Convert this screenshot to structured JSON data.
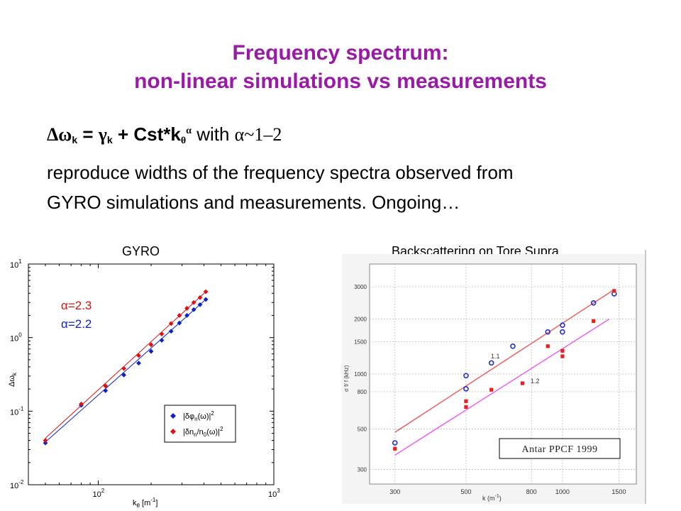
{
  "title": {
    "line1": "Frequency spectrum:",
    "line2": "non-linear simulations vs measurements"
  },
  "formula": {
    "lhs": "Δω",
    "lhs_sub": "k",
    "eq": " = ",
    "gamma": "γ",
    "gamma_sub": "k",
    "plus": " + Cst*k",
    "k_sub": "θ",
    "k_sup": "α",
    "with": " with ",
    "range": "α~1–2"
  },
  "body": {
    "line1": "reproduce widths of the frequency spectra observed from",
    "line2": "GYRO simulations and measurements. Ongoing…"
  },
  "colors": {
    "title": "#9a1aa8",
    "red": "#e01010",
    "blue": "#1020c8",
    "bs_blue": "#2030d0",
    "bs_red": "#e82020",
    "bs_red_line": "#f06060",
    "bs_magenta_line": "#f060f0"
  },
  "chart_data": [
    {
      "type": "scatter",
      "panel_label": "GYRO",
      "xscale": "log",
      "yscale": "log",
      "xlim": [
        40,
        1000
      ],
      "ylim": [
        0.01,
        10
      ],
      "xticks": [
        "10",
        "10"
      ],
      "xtick_sups": [
        "2",
        "3"
      ],
      "yticks": [
        "10",
        "10",
        "10",
        "10"
      ],
      "ytick_sups": [
        "-2",
        "-1",
        "0",
        "1"
      ],
      "xlabel": "k",
      "xlabel_sub": "θ",
      "xlabel_unit": " [m",
      "xlabel_unit_sup": "-1",
      "xlabel_close": "]",
      "ylabel": "Δω",
      "ylabel_sub": "k",
      "annotations": [
        {
          "text": "α=2.3",
          "color": "#e01010"
        },
        {
          "text": "α=2.2",
          "color": "#1020c8"
        }
      ],
      "legend_position": "lower-right",
      "legend": [
        {
          "pre": "|δφ",
          "sub": "n",
          "post": "(ω)|",
          "sup": "2",
          "color": "#1020c8"
        },
        {
          "pre": "|δn",
          "sub": "n",
          "mid": "/n",
          "sub2": "0",
          "post": "(ω)|",
          "sup": "2",
          "color": "#e01010"
        }
      ],
      "series": [
        {
          "color": "#1020c8",
          "x": [
            50,
            80,
            110,
            140,
            170,
            200,
            230,
            260,
            290,
            320,
            350,
            380,
            410
          ],
          "y": [
            0.037,
            0.12,
            0.19,
            0.31,
            0.45,
            0.65,
            0.92,
            1.22,
            1.58,
            2.0,
            2.4,
            2.8,
            3.3
          ]
        },
        {
          "color": "#e01010",
          "x": [
            50,
            80,
            110,
            140,
            170,
            200,
            230,
            260,
            290,
            320,
            350,
            380,
            410
          ],
          "y": [
            0.04,
            0.125,
            0.22,
            0.38,
            0.57,
            0.8,
            1.12,
            1.55,
            2.0,
            2.5,
            3.0,
            3.5,
            4.2
          ]
        }
      ],
      "fits": [
        {
          "color": "#1020c8",
          "x": [
            50,
            410
          ],
          "y": [
            0.038,
            3.3
          ]
        },
        {
          "color": "#e01010",
          "x": [
            50,
            410
          ],
          "y": [
            0.043,
            4.2
          ]
        }
      ]
    },
    {
      "type": "scatter",
      "panel_label": "Backscattering on Tore Supra",
      "xscale": "log",
      "yscale": "log",
      "xlim": [
        250,
        1700
      ],
      "ylim": [
        250,
        4000
      ],
      "xticks": [
        300,
        500,
        800,
        1000,
        1500
      ],
      "yticks": [
        300,
        500,
        800,
        1000,
        1500,
        2000,
        3000
      ],
      "xlabel": "k (m",
      "xlabel_sup": "-1",
      "xlabel_close": ")",
      "ylabel": "σ f/ f (kHz)",
      "fit_labels": [
        "1.1",
        "1.2"
      ],
      "citation": "Antar PPCF 1999",
      "series": [
        {
          "color": "#2030d0",
          "marker": "open-circle",
          "x": [
            300,
            500,
            500,
            600,
            700,
            900,
            1000,
            1000,
            1250,
            1450
          ],
          "y": [
            420,
            980,
            830,
            1150,
            1420,
            1700,
            1850,
            1700,
            2450,
            2750
          ]
        },
        {
          "color": "#e82020",
          "marker": "filled-square",
          "x": [
            300,
            500,
            500,
            600,
            750,
            900,
            1000,
            1000,
            1250,
            1450
          ],
          "y": [
            390,
            710,
            660,
            820,
            890,
            1420,
            1340,
            1250,
            1950,
            2850
          ]
        }
      ],
      "fits": [
        {
          "color": "#f06060",
          "x": [
            300,
            1450
          ],
          "y": [
            480,
            2900
          ]
        },
        {
          "color": "#f060f0",
          "x": [
            300,
            1400
          ],
          "y": [
            360,
            2000
          ]
        }
      ]
    }
  ]
}
